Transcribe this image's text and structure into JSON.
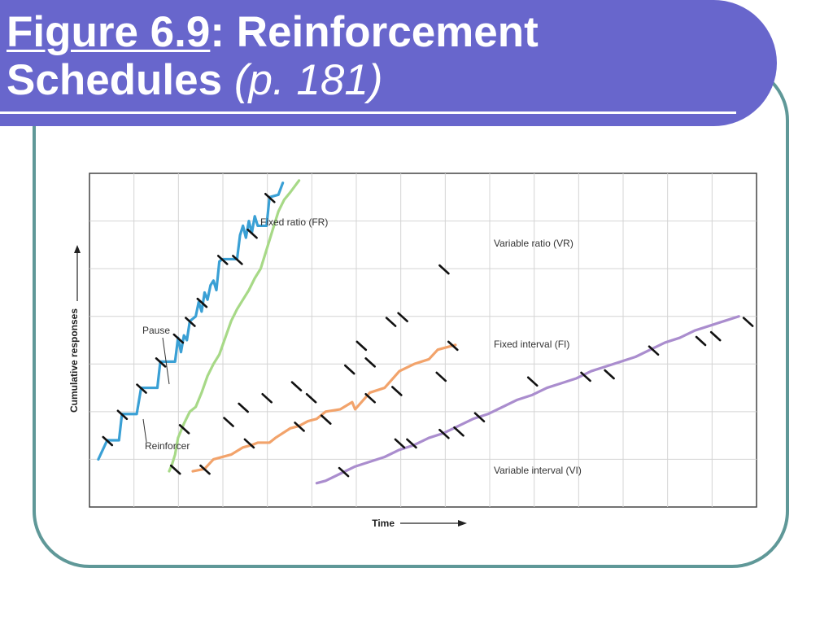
{
  "slide": {
    "title_figure": "Figure 6.9",
    "title_rest": ": Reinforcement",
    "title_line2": "Schedules",
    "title_page_open": " (",
    "title_page": "p. 181",
    "title_page_close": ")"
  },
  "chart_data": {
    "type": "line",
    "title": "",
    "xlabel": "Time",
    "ylabel": "Cumulative responses",
    "annotations": [
      "Pause",
      "Reinforcer"
    ],
    "grid": true,
    "series": [
      {
        "name": "Fixed ratio (FR)",
        "color": "#3aa0d5",
        "x": [
          0.3,
          0.6,
          1.0,
          1.1,
          1.6,
          1.75,
          2.3,
          2.4,
          2.9,
          3.0,
          3.1,
          3.2,
          3.3,
          3.4,
          3.6,
          3.7,
          3.8,
          3.9,
          4.0,
          4.1,
          4.2,
          4.3,
          4.4,
          4.5,
          5.0,
          5.1,
          5.2,
          5.3,
          5.4,
          5.5,
          5.6,
          5.7,
          6.0,
          6.1,
          6.4,
          6.55
        ],
        "y": [
          1.0,
          1.4,
          1.4,
          1.95,
          1.95,
          2.5,
          2.5,
          3.05,
          3.05,
          3.55,
          3.25,
          3.6,
          3.5,
          3.9,
          4.0,
          4.3,
          4.1,
          4.5,
          4.35,
          4.65,
          4.75,
          4.55,
          5.15,
          5.2,
          5.2,
          5.7,
          5.9,
          5.65,
          6.0,
          5.75,
          6.1,
          5.9,
          5.9,
          6.5,
          6.55,
          6.8
        ]
      },
      {
        "name": "Variable ratio (VR)",
        "color": "#a7d987",
        "x": [
          2.7,
          2.8,
          2.9,
          3.0,
          3.2,
          3.4,
          3.6,
          3.8,
          4.0,
          4.2,
          4.4,
          4.6,
          4.8,
          5.0,
          5.2,
          5.4,
          5.6,
          5.8,
          6.0,
          6.2,
          6.4,
          6.6,
          6.8,
          7.1
        ],
        "y": [
          0.75,
          0.9,
          1.1,
          1.45,
          1.75,
          2.0,
          2.1,
          2.4,
          2.75,
          3.0,
          3.2,
          3.55,
          3.9,
          4.15,
          4.35,
          4.55,
          4.8,
          5.0,
          5.4,
          5.8,
          6.2,
          6.45,
          6.6,
          6.85
        ]
      },
      {
        "name": "Fixed interval (FI)",
        "color": "#f2a36b",
        "x": [
          3.5,
          3.9,
          4.2,
          4.8,
          5.2,
          5.5,
          5.7,
          6.1,
          6.3,
          6.8,
          7.1,
          7.4,
          7.7,
          8.0,
          8.5,
          8.9,
          9.0,
          9.5,
          10.0,
          10.5,
          11.0,
          11.5,
          11.8,
          12.4
        ],
        "y": [
          0.75,
          0.8,
          1.0,
          1.1,
          1.25,
          1.3,
          1.35,
          1.35,
          1.45,
          1.65,
          1.7,
          1.8,
          1.85,
          2.0,
          2.05,
          2.2,
          2.05,
          2.4,
          2.5,
          2.85,
          3.0,
          3.1,
          3.3,
          3.4
        ]
      },
      {
        "name": "Variable interval (VI)",
        "color": "#aa8dce",
        "x": [
          7.7,
          8.0,
          8.5,
          9.0,
          9.5,
          10.0,
          10.5,
          11.0,
          11.5,
          12.0,
          12.5,
          13.0,
          13.5,
          14.0,
          14.5,
          15.0,
          15.5,
          16.0,
          16.5,
          17.0,
          17.5,
          18.0,
          18.5,
          19.0,
          19.5,
          20.0,
          20.5,
          21.0,
          21.5,
          22.0
        ],
        "y": [
          0.5,
          0.55,
          0.7,
          0.85,
          0.95,
          1.05,
          1.2,
          1.3,
          1.45,
          1.55,
          1.7,
          1.85,
          1.95,
          2.1,
          2.25,
          2.35,
          2.5,
          2.6,
          2.7,
          2.85,
          2.95,
          3.05,
          3.15,
          3.3,
          3.45,
          3.55,
          3.7,
          3.8,
          3.9,
          4.0
        ]
      }
    ],
    "reinforcers": [
      [
        0.6,
        1.4
      ],
      [
        1.1,
        1.95
      ],
      [
        1.75,
        2.5
      ],
      [
        2.4,
        3.05
      ],
      [
        3.0,
        3.55
      ],
      [
        3.4,
        3.9
      ],
      [
        3.8,
        4.3
      ],
      [
        4.5,
        5.2
      ],
      [
        5.0,
        5.2
      ],
      [
        6.1,
        6.5
      ],
      [
        5.5,
        5.75
      ],
      [
        2.9,
        0.8
      ],
      [
        3.2,
        1.65
      ],
      [
        4.7,
        1.8
      ],
      [
        5.2,
        2.1
      ],
      [
        6.0,
        2.3
      ],
      [
        7.0,
        2.55
      ],
      [
        7.5,
        2.3
      ],
      [
        8.8,
        2.9
      ],
      [
        9.5,
        3.05
      ],
      [
        9.2,
        3.4
      ],
      [
        10.2,
        3.9
      ],
      [
        10.6,
        4.0
      ],
      [
        12.0,
        5.0
      ],
      [
        3.9,
        0.8
      ],
      [
        5.4,
        1.35
      ],
      [
        7.1,
        1.7
      ],
      [
        8.0,
        1.85
      ],
      [
        9.5,
        2.3
      ],
      [
        10.4,
        2.45
      ],
      [
        11.9,
        2.75
      ],
      [
        12.3,
        3.4
      ],
      [
        8.6,
        0.75
      ],
      [
        10.5,
        1.35
      ],
      [
        10.9,
        1.35
      ],
      [
        12.0,
        1.55
      ],
      [
        12.5,
        1.6
      ],
      [
        13.2,
        1.9
      ],
      [
        15.0,
        2.65
      ],
      [
        16.8,
        2.75
      ],
      [
        17.6,
        2.8
      ],
      [
        19.1,
        3.3
      ],
      [
        20.7,
        3.5
      ],
      [
        21.2,
        3.6
      ],
      [
        22.3,
        3.9
      ]
    ]
  }
}
